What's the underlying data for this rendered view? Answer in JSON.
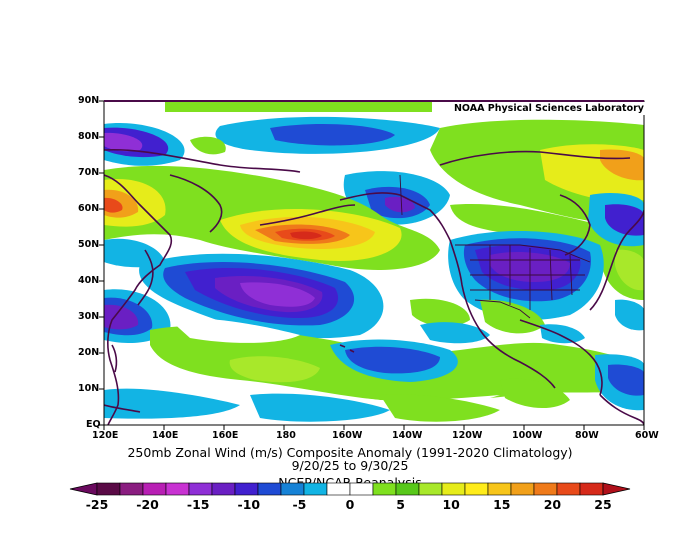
{
  "map": {
    "credit": "NOAA Physical Sciences Laboratory",
    "title_line1": "250mb Zonal Wind (m/s) Composite Anomaly (1991-2020 Climatology)",
    "title_line2": "9/20/25  to 9/30/25",
    "source": "NCEP/NCAR Reanalysis",
    "lat_labels": [
      "90N",
      "80N",
      "70N",
      "60N",
      "50N",
      "40N",
      "30N",
      "20N",
      "10N",
      "EQ"
    ],
    "lon_labels": [
      "120E",
      "140E",
      "160E",
      "180",
      "160W",
      "140W",
      "120W",
      "100W",
      "80W",
      "60W"
    ]
  },
  "colorbar": {
    "labels": [
      "-25",
      "-20",
      "-15",
      "-10",
      "-5",
      "0",
      "5",
      "10",
      "15",
      "20",
      "25"
    ],
    "range": [
      -25,
      25
    ],
    "colors": [
      "#5a0a46",
      "#8a1d80",
      "#b81fb4",
      "#c832d2",
      "#8f2fd6",
      "#6a1fc3",
      "#4120cf",
      "#1f4bd4",
      "#1682d6",
      "#12b4e4",
      "#ffffff",
      "#ffffff",
      "#7fe01f",
      "#58c81a",
      "#a8e82a",
      "#e6ec1a",
      "#ffec1a",
      "#f7c51a",
      "#f1a01a",
      "#ef7a1a",
      "#e84a1a",
      "#d62a1a"
    ],
    "low_arrow_color": "#6a0a5e",
    "high_arrow_color": "#b0101a"
  },
  "colors": {
    "coastline": "#4a0a48",
    "border": "#000000"
  }
}
